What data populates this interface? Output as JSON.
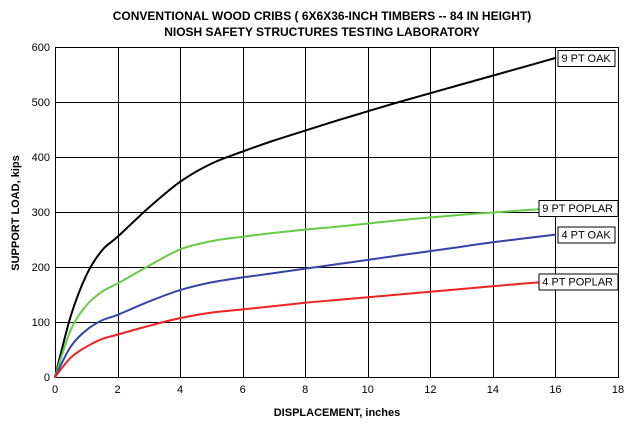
{
  "chart_data": {
    "type": "line",
    "title": "CONVENTIONAL WOOD CRIBS ( 6X6X36-INCH TIMBERS -- 84 IN HEIGHT)",
    "subtitle": "NIOSH SAFETY STRUCTURES TESTING LABORATORY",
    "xlabel": "DISPLACEMENT, inches",
    "ylabel": "SUPPORT LOAD, kips",
    "xlim": [
      0,
      18
    ],
    "ylim": [
      0,
      600
    ],
    "xticks": [
      0,
      2,
      4,
      6,
      8,
      10,
      12,
      14,
      16,
      18
    ],
    "yticks": [
      0,
      100,
      200,
      300,
      400,
      500,
      600
    ],
    "grid": true,
    "legend": "inline labels at line ends",
    "series": [
      {
        "name": "9 PT OAK",
        "color": "#000000",
        "x": [
          0,
          0.5,
          1,
          1.5,
          2,
          3,
          4,
          5,
          6,
          7,
          8,
          9,
          10,
          11,
          12,
          13,
          14,
          15,
          16
        ],
        "y": [
          0,
          110,
          185,
          230,
          255,
          308,
          355,
          388,
          410,
          430,
          448,
          466,
          483,
          500,
          516,
          532,
          548,
          564,
          580
        ]
      },
      {
        "name": "9 PT POPLAR",
        "color": "#66cc44",
        "x": [
          0,
          0.5,
          1,
          1.5,
          2,
          3,
          4,
          5,
          6,
          7,
          8,
          9,
          10,
          11,
          12,
          13,
          14,
          15,
          16
        ],
        "y": [
          0,
          85,
          130,
          155,
          170,
          202,
          232,
          247,
          255,
          262,
          268,
          273,
          279,
          285,
          290,
          295,
          299,
          303,
          307
        ]
      },
      {
        "name": "4 PT OAK",
        "color": "#3344aa",
        "x": [
          0,
          0.5,
          1,
          1.5,
          2,
          3,
          4,
          5,
          6,
          7,
          8,
          9,
          10,
          11,
          12,
          13,
          14,
          15,
          16
        ],
        "y": [
          0,
          55,
          85,
          103,
          113,
          137,
          158,
          172,
          181,
          189,
          197,
          205,
          213,
          221,
          229,
          237,
          245,
          252,
          259
        ]
      },
      {
        "name": "4 PT POPLAR",
        "color": "#ee2222",
        "x": [
          0,
          0.5,
          1,
          1.5,
          2,
          3,
          4,
          5,
          6,
          7,
          8,
          9,
          10,
          11,
          12,
          13,
          14,
          15,
          16
        ],
        "y": [
          0,
          35,
          55,
          69,
          77,
          93,
          107,
          117,
          123,
          129,
          135,
          140,
          145,
          150,
          155,
          160,
          165,
          170,
          174
        ]
      }
    ]
  }
}
